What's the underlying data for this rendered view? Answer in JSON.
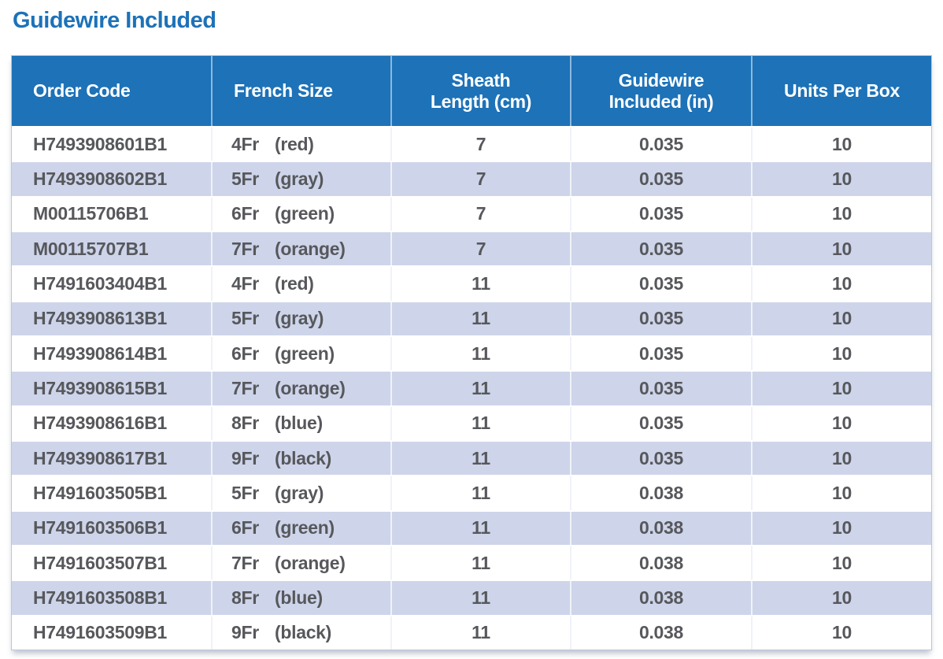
{
  "page": {
    "title": "Guidewire Included"
  },
  "colors": {
    "title_text": "#1D72B8",
    "header_bg": "#1D72B8",
    "header_text": "#FFFFFF",
    "row_alt_bg": "#CED5EA",
    "row_bg": "#FFFFFF",
    "data_text": "#57585C",
    "table_border": "#B3C8E2"
  },
  "table": {
    "columns": [
      "Order Code",
      "French Size",
      "Sheath\nLength (cm)",
      "Guidewire\nIncluded (in)",
      "Units Per Box"
    ],
    "rows": [
      {
        "order_code": "H7493908601B1",
        "french_size": "4Fr",
        "french_color": "(red)",
        "sheath_length_cm": "7",
        "guidewire_in": "0.035",
        "units_per_box": "10"
      },
      {
        "order_code": "H7493908602B1",
        "french_size": "5Fr",
        "french_color": "(gray)",
        "sheath_length_cm": "7",
        "guidewire_in": "0.035",
        "units_per_box": "10"
      },
      {
        "order_code": "M00115706B1",
        "french_size": "6Fr",
        "french_color": "(green)",
        "sheath_length_cm": "7",
        "guidewire_in": "0.035",
        "units_per_box": "10"
      },
      {
        "order_code": "M00115707B1",
        "french_size": "7Fr",
        "french_color": "(orange)",
        "sheath_length_cm": "7",
        "guidewire_in": "0.035",
        "units_per_box": "10"
      },
      {
        "order_code": "H7491603404B1",
        "french_size": "4Fr",
        "french_color": "(red)",
        "sheath_length_cm": "11",
        "guidewire_in": "0.035",
        "units_per_box": "10"
      },
      {
        "order_code": "H7493908613B1",
        "french_size": "5Fr",
        "french_color": "(gray)",
        "sheath_length_cm": "11",
        "guidewire_in": "0.035",
        "units_per_box": "10"
      },
      {
        "order_code": "H7493908614B1",
        "french_size": "6Fr",
        "french_color": "(green)",
        "sheath_length_cm": "11",
        "guidewire_in": "0.035",
        "units_per_box": "10"
      },
      {
        "order_code": "H7493908615B1",
        "french_size": "7Fr",
        "french_color": "(orange)",
        "sheath_length_cm": "11",
        "guidewire_in": "0.035",
        "units_per_box": "10"
      },
      {
        "order_code": "H7493908616B1",
        "french_size": "8Fr",
        "french_color": "(blue)",
        "sheath_length_cm": "11",
        "guidewire_in": "0.035",
        "units_per_box": "10"
      },
      {
        "order_code": "H7493908617B1",
        "french_size": "9Fr",
        "french_color": "(black)",
        "sheath_length_cm": "11",
        "guidewire_in": "0.035",
        "units_per_box": "10"
      },
      {
        "order_code": "H7491603505B1",
        "french_size": "5Fr",
        "french_color": "(gray)",
        "sheath_length_cm": "11",
        "guidewire_in": "0.038",
        "units_per_box": "10"
      },
      {
        "order_code": "H7491603506B1",
        "french_size": "6Fr",
        "french_color": "(green)",
        "sheath_length_cm": "11",
        "guidewire_in": "0.038",
        "units_per_box": "10"
      },
      {
        "order_code": "H7491603507B1",
        "french_size": "7Fr",
        "french_color": "(orange)",
        "sheath_length_cm": "11",
        "guidewire_in": "0.038",
        "units_per_box": "10"
      },
      {
        "order_code": "H7491603508B1",
        "french_size": "8Fr",
        "french_color": "(blue)",
        "sheath_length_cm": "11",
        "guidewire_in": "0.038",
        "units_per_box": "10"
      },
      {
        "order_code": "H7491603509B1",
        "french_size": "9Fr",
        "french_color": "(black)",
        "sheath_length_cm": "11",
        "guidewire_in": "0.038",
        "units_per_box": "10"
      }
    ]
  }
}
